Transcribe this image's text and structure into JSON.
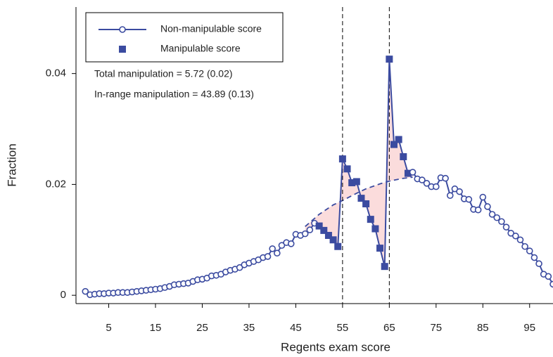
{
  "chart_data": {
    "type": "line",
    "xlabel": "Regents exam score",
    "ylabel": "Fraction",
    "x": [
      0,
      1,
      2,
      3,
      4,
      5,
      6,
      7,
      8,
      9,
      10,
      11,
      12,
      13,
      14,
      15,
      16,
      17,
      18,
      19,
      20,
      21,
      22,
      23,
      24,
      25,
      26,
      27,
      28,
      29,
      30,
      31,
      32,
      33,
      34,
      35,
      36,
      37,
      38,
      39,
      40,
      41,
      42,
      43,
      44,
      45,
      46,
      47,
      48,
      49,
      50,
      51,
      52,
      53,
      54,
      55,
      56,
      57,
      58,
      59,
      60,
      61,
      62,
      63,
      64,
      65,
      66,
      67,
      68,
      69,
      70,
      71,
      72,
      73,
      74,
      75,
      76,
      77,
      78,
      79,
      80,
      81,
      82,
      83,
      84,
      85,
      86,
      87,
      88,
      89,
      90,
      91,
      92,
      93,
      94,
      95,
      96,
      97,
      98,
      99,
      100
    ],
    "series": [
      {
        "name": "Non-manipulable score",
        "color": "#3b4ba0",
        "marker": "circle",
        "values": [
          0.0007,
          0.0001,
          0.0002,
          0.0003,
          0.0003,
          0.0004,
          0.0004,
          0.0005,
          0.0005,
          0.0005,
          0.0006,
          0.0007,
          0.0008,
          0.0009,
          0.001,
          0.0011,
          0.0012,
          0.0014,
          0.0016,
          0.0019,
          0.002,
          0.0021,
          0.0022,
          0.0025,
          0.0028,
          0.0029,
          0.0031,
          0.0035,
          0.0036,
          0.0038,
          0.0042,
          0.0045,
          0.0047,
          0.005,
          0.0055,
          0.0058,
          0.0061,
          0.0064,
          0.0068,
          0.007,
          0.0084,
          0.0076,
          0.009,
          0.0095,
          0.0093,
          0.011,
          0.0108,
          0.0111,
          0.0118,
          0.013,
          null,
          null,
          null,
          null,
          null,
          null,
          null,
          null,
          null,
          null,
          null,
          null,
          null,
          null,
          null,
          null,
          null,
          null,
          null,
          null,
          0.0222,
          0.021,
          0.0208,
          0.0202,
          0.0196,
          0.0196,
          0.0212,
          0.0211,
          0.018,
          0.0192,
          0.0187,
          0.0174,
          0.0173,
          0.0155,
          0.0154,
          0.0177,
          0.016,
          0.0146,
          0.014,
          0.0133,
          0.0123,
          0.0112,
          0.0107,
          0.01,
          0.0088,
          0.008,
          0.0068,
          0.0057,
          0.0038,
          0.0034,
          0.002
        ]
      },
      {
        "name": "Manipulable score",
        "color": "#3b4ba0",
        "marker": "square",
        "values": [
          null,
          null,
          null,
          null,
          null,
          null,
          null,
          null,
          null,
          null,
          null,
          null,
          null,
          null,
          null,
          null,
          null,
          null,
          null,
          null,
          null,
          null,
          null,
          null,
          null,
          null,
          null,
          null,
          null,
          null,
          null,
          null,
          null,
          null,
          null,
          null,
          null,
          null,
          null,
          null,
          null,
          null,
          null,
          null,
          null,
          null,
          null,
          null,
          null,
          null,
          0.0125,
          0.0117,
          0.0108,
          0.01,
          0.0088,
          0.0246,
          0.0228,
          0.0203,
          0.0205,
          0.0175,
          0.0165,
          0.0137,
          0.012,
          0.0085,
          0.0052,
          0.0426,
          0.0272,
          0.0281,
          0.025,
          0.022,
          null,
          null,
          null,
          null,
          null,
          null,
          null,
          null,
          null,
          null,
          null,
          null,
          null,
          null,
          null,
          null,
          null,
          null,
          null,
          null,
          null,
          null,
          null,
          null,
          null,
          null,
          null,
          null,
          null,
          null,
          null
        ]
      }
    ],
    "counterfactual": {
      "color": "#3b4ba0",
      "dashed": true,
      "x": [
        47,
        50,
        53,
        55,
        58,
        60,
        63,
        65,
        68,
        70
      ],
      "values": [
        0.0124,
        0.0146,
        0.0163,
        0.0171,
        0.0184,
        0.0192,
        0.0201,
        0.0206,
        0.0211,
        0.0213
      ]
    },
    "shade_color": "#fbdcdc",
    "vlines": [
      55,
      65
    ],
    "annotations": [
      "Total manipulation = 5.72 (0.02)",
      "In-range manipulation = 43.89 (0.13)"
    ],
    "xlim": [
      -2,
      100
    ],
    "ylim": [
      -0.0015,
      0.052
    ],
    "xticks": [
      5,
      15,
      25,
      35,
      45,
      55,
      65,
      75,
      85,
      95
    ],
    "yticks": [
      0,
      0.02,
      0.04
    ]
  }
}
